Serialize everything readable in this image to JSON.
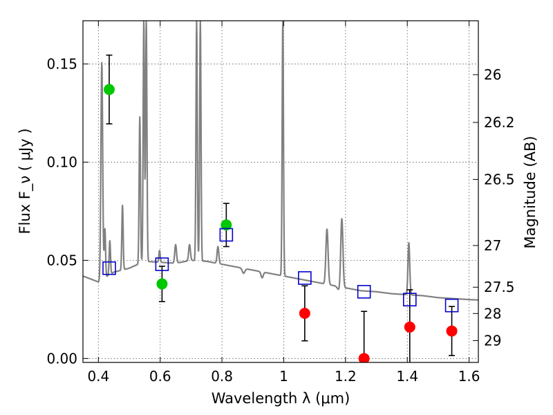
{
  "chart_data": {
    "type": "scatter",
    "xlabel": "Wavelength  λ (μm)",
    "ylabel_left": "Flux  F_ν  ( μJy )",
    "ylabel_right": "Magnitude (AB)",
    "xlim": [
      0.35,
      1.63
    ],
    "ylim": [
      -0.002,
      0.172
    ],
    "x_ticks": [
      0.4,
      0.6,
      0.8,
      1.0,
      1.2,
      1.4,
      1.6
    ],
    "x_tick_labels": [
      "0.4",
      "0.6",
      "0.8",
      "1",
      "1.2",
      "1.4",
      "1.6"
    ],
    "y_ticks": [
      0.0,
      0.05,
      0.1,
      0.15
    ],
    "y_tick_labels": [
      "0.00",
      "0.05",
      "0.10",
      "0.15"
    ],
    "right_ticks": [
      {
        "label": "26",
        "mag": 26.0
      },
      {
        "label": "26.2",
        "mag": 26.2
      },
      {
        "label": "26.5",
        "mag": 26.5
      },
      {
        "label": "27",
        "mag": 27.0
      },
      {
        "label": "27.5",
        "mag": 27.5
      },
      {
        "label": "28",
        "mag": 28.0
      },
      {
        "label": "29",
        "mag": 29.0
      }
    ],
    "grid": true,
    "colors": {
      "green": "#00c800",
      "red": "#ff0000",
      "model_square": "#0000cc",
      "spectrum": "#808080",
      "errorbar": "#000000",
      "grid": "#555555"
    },
    "series": [
      {
        "marker": "circle",
        "color": "#00c800",
        "points": [
          {
            "x": 0.435,
            "y": 0.137,
            "yerr": 0.0175
          },
          {
            "x": 0.606,
            "y": 0.038,
            "yerr": 0.009
          },
          {
            "x": 0.814,
            "y": 0.068,
            "yerr": 0.011
          }
        ]
      },
      {
        "marker": "circle",
        "color": "#ff0000",
        "points": [
          {
            "x": 1.068,
            "y": 0.023,
            "yerr": 0.014
          },
          {
            "x": 1.26,
            "y": 0.0,
            "yerr": 0.024
          },
          {
            "x": 1.408,
            "y": 0.016,
            "yerr": 0.019
          },
          {
            "x": 1.544,
            "y": 0.014,
            "yerr": 0.0125
          }
        ]
      },
      {
        "marker": "square",
        "color": "#0000cc",
        "points": [
          {
            "x": 0.435,
            "y": 0.046
          },
          {
            "x": 0.606,
            "y": 0.048
          },
          {
            "x": 0.814,
            "y": 0.063
          },
          {
            "x": 1.068,
            "y": 0.041
          },
          {
            "x": 1.26,
            "y": 0.034
          },
          {
            "x": 1.408,
            "y": 0.03
          },
          {
            "x": 1.544,
            "y": 0.027
          }
        ]
      }
    ],
    "spectrum": {
      "continuum": [
        [
          0.35,
          0.042
        ],
        [
          0.4,
          0.039
        ],
        [
          0.45,
          0.044
        ],
        [
          0.5,
          0.046
        ],
        [
          0.55,
          0.0495
        ],
        [
          0.6,
          0.049
        ],
        [
          0.65,
          0.0485
        ],
        [
          0.7,
          0.05
        ],
        [
          0.75,
          0.0495
        ],
        [
          0.8,
          0.048
        ],
        [
          0.85,
          0.0465
        ],
        [
          0.9,
          0.045
        ],
        [
          0.95,
          0.0435
        ],
        [
          1.0,
          0.042
        ],
        [
          1.05,
          0.0405
        ],
        [
          1.1,
          0.039
        ],
        [
          1.15,
          0.0375
        ],
        [
          1.2,
          0.036
        ],
        [
          1.25,
          0.0345
        ],
        [
          1.3,
          0.034
        ],
        [
          1.35,
          0.033
        ],
        [
          1.4,
          0.0325
        ],
        [
          1.45,
          0.032
        ],
        [
          1.5,
          0.031
        ],
        [
          1.55,
          0.0305
        ],
        [
          1.6,
          0.03
        ],
        [
          1.63,
          0.0298
        ]
      ],
      "lines": [
        {
          "x": 0.411,
          "peak": 0.151,
          "w": 0.004
        },
        {
          "x": 0.421,
          "peak": 0.066,
          "w": 0.003
        },
        {
          "x": 0.437,
          "peak": 0.06,
          "w": 0.003
        },
        {
          "x": 0.478,
          "peak": 0.078,
          "w": 0.003
        },
        {
          "x": 0.534,
          "peak": 0.123,
          "w": 0.003
        },
        {
          "x": 0.547,
          "peak": 0.172,
          "w": 0.003
        },
        {
          "x": 0.555,
          "peak": 0.172,
          "w": 0.003
        },
        {
          "x": 0.598,
          "peak": 0.055,
          "w": 0.003
        },
        {
          "x": 0.65,
          "peak": 0.058,
          "w": 0.004
        },
        {
          "x": 0.695,
          "peak": 0.058,
          "w": 0.004
        },
        {
          "x": 0.718,
          "peak": 0.172,
          "w": 0.003
        },
        {
          "x": 0.73,
          "peak": 0.172,
          "w": 0.003
        },
        {
          "x": 0.787,
          "peak": 0.057,
          "w": 0.004
        },
        {
          "x": 0.997,
          "peak": 0.172,
          "w": 0.003
        },
        {
          "x": 1.14,
          "peak": 0.066,
          "w": 0.005
        },
        {
          "x": 1.188,
          "peak": 0.072,
          "w": 0.005
        },
        {
          "x": 1.405,
          "peak": 0.059,
          "w": 0.004
        }
      ]
    }
  }
}
